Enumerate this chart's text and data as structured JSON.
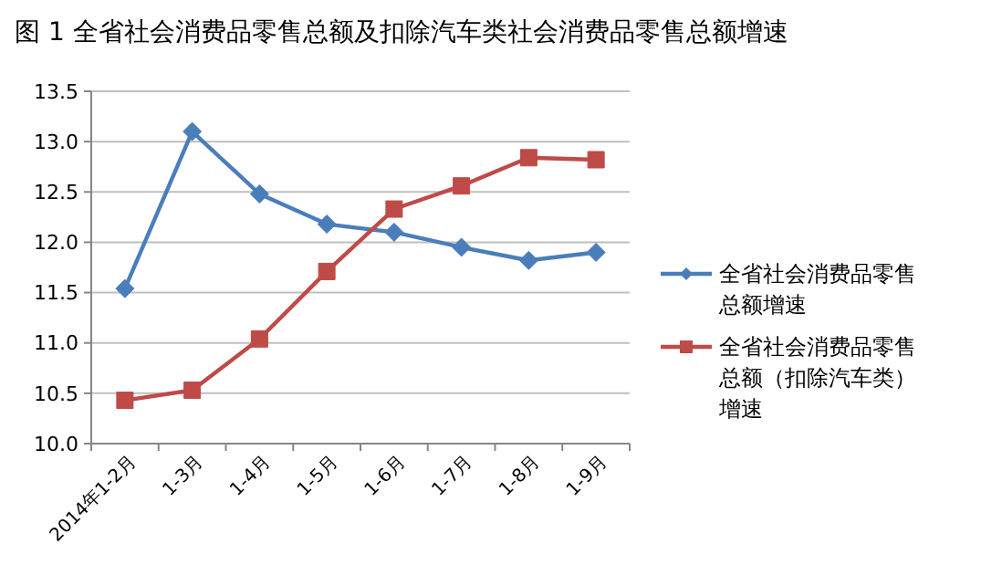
{
  "chart_data": {
    "type": "line",
    "title": "图 1 全省社会消费品零售总额及扣除汽车类社会消费品零售总额增速",
    "categories": [
      "2014年1-2月",
      "1-3月",
      "1-4月",
      "1-5月",
      "1-6月",
      "1-7月",
      "1-8月",
      "1-9月"
    ],
    "series": [
      {
        "name": "全省社会消费品零售总额增速",
        "color": "#4a7ebb",
        "marker": "diamond",
        "values": [
          11.54,
          13.1,
          12.48,
          12.18,
          12.1,
          11.95,
          11.82,
          11.9
        ]
      },
      {
        "name": "全省社会消费品零售总额（扣除汽车类）增速",
        "color": "#be4b48",
        "marker": "square",
        "values": [
          10.43,
          10.53,
          11.04,
          11.71,
          12.33,
          12.56,
          12.84,
          12.82
        ]
      }
    ],
    "ylim": [
      10.0,
      13.5
    ],
    "yticks": [
      {
        "value": 10,
        "label": "10.0"
      },
      {
        "value": 10.5,
        "label": "10.5"
      },
      {
        "value": 11,
        "label": "11.0"
      },
      {
        "value": 11.5,
        "label": "11.5"
      },
      {
        "value": 12,
        "label": "12.0"
      },
      {
        "value": 12.5,
        "label": "12.5"
      },
      {
        "value": 13,
        "label": "13.0"
      },
      {
        "value": 13.5,
        "label": "13.5"
      }
    ],
    "grid": "y",
    "legend": "right",
    "line_style": "solid"
  }
}
